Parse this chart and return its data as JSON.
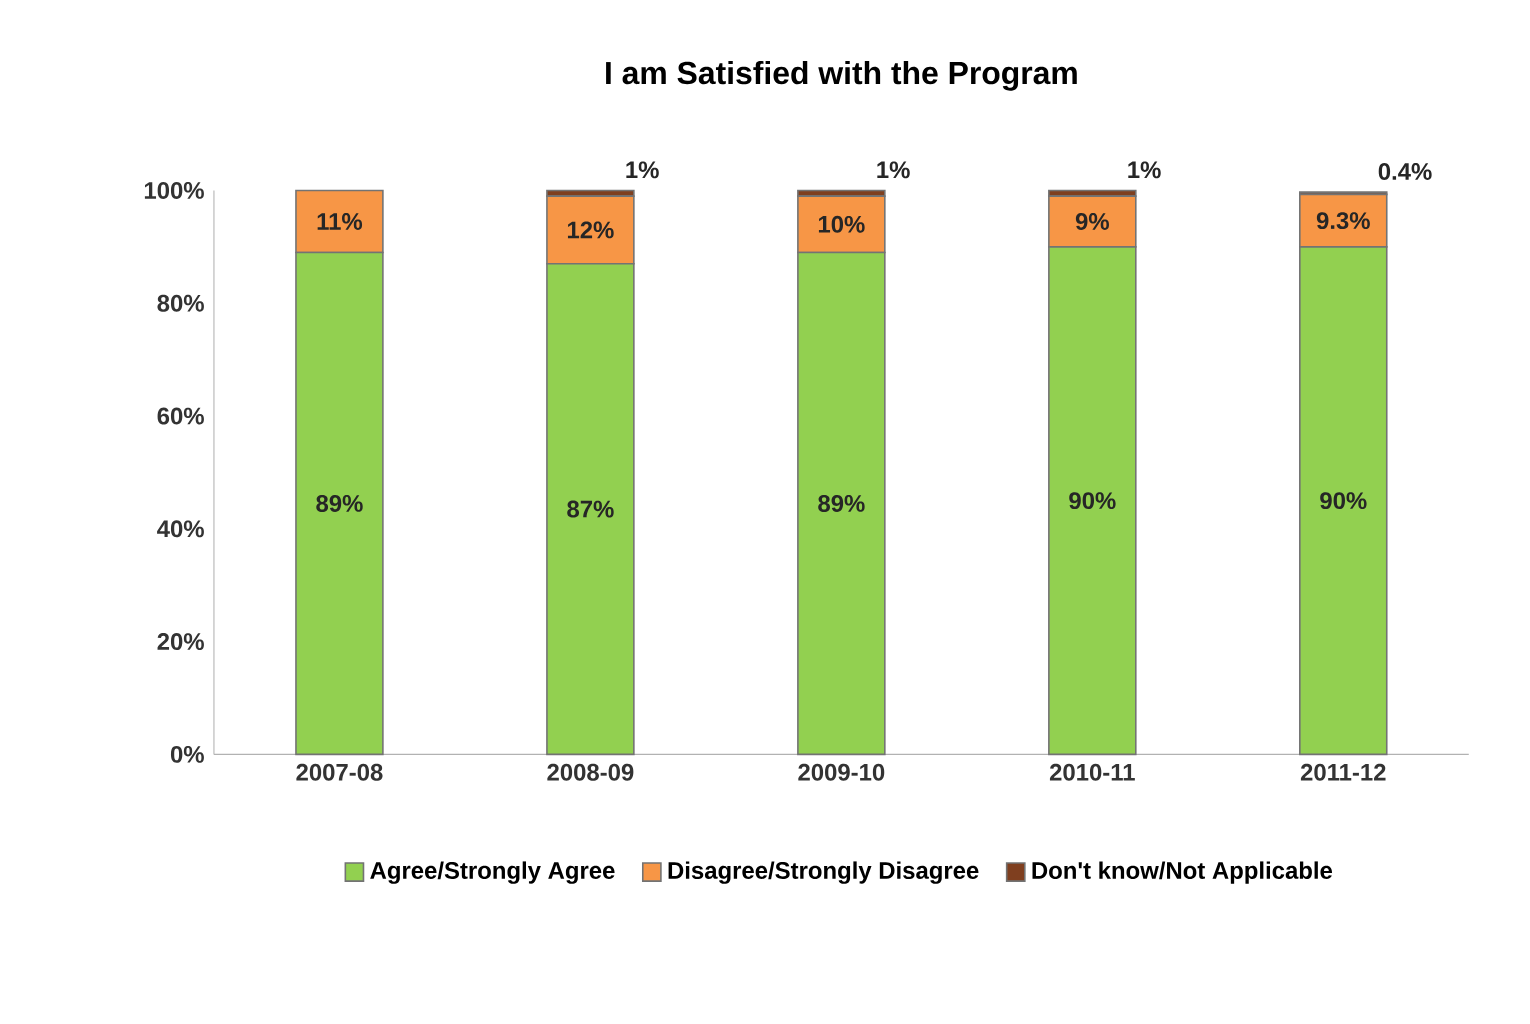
{
  "chart_data": {
    "type": "bar",
    "title": "I am Satisfied with the Program",
    "categories": [
      "2007-08",
      "2008-09",
      "2009-10",
      "2010-11",
      "2011-12"
    ],
    "stacked": true,
    "legend": "bottom",
    "ylim": [
      0,
      100
    ],
    "yticks": [
      {
        "value": 0,
        "label": "0%"
      },
      {
        "value": 20,
        "label": "20%"
      },
      {
        "value": 40,
        "label": "40%"
      },
      {
        "value": 60,
        "label": "60%"
      },
      {
        "value": 80,
        "label": "80%"
      },
      {
        "value": 100,
        "label": "100%"
      }
    ],
    "series": [
      {
        "name": "Agree/Strongly Agree",
        "color": "#92d050",
        "values": [
          89,
          87,
          89,
          90,
          90
        ],
        "value_labels": [
          "89%",
          "87%",
          "89%",
          "90%",
          "90%"
        ]
      },
      {
        "name": "Disagree/Strongly Disagree",
        "color": "#f79646",
        "values": [
          11,
          12,
          10,
          9,
          9.3
        ],
        "value_labels": [
          "11%",
          "12%",
          "10%",
          "9%",
          "9.3%"
        ]
      },
      {
        "name": "Don't know/Not Applicable",
        "color": "#7f3f1f",
        "values": [
          0,
          1,
          1,
          1,
          0.4
        ],
        "value_labels": [
          null,
          "1%",
          "1%",
          "1%",
          "0.4%"
        ]
      }
    ]
  }
}
